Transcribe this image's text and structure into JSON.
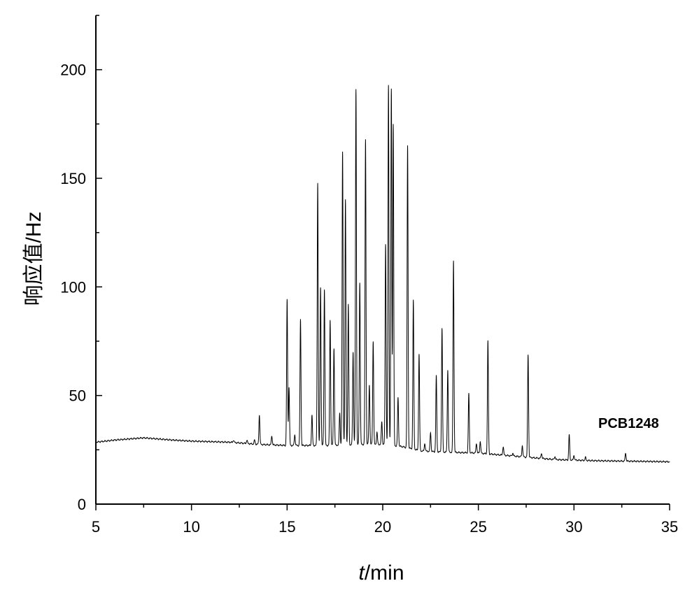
{
  "chart_data": {
    "type": "line",
    "title": "",
    "xlabel_italic": "t",
    "xlabel_rest": "/min",
    "ylabel": "响应值/Hz",
    "xlim": [
      5,
      35
    ],
    "ylim": [
      0,
      225
    ],
    "xticks": [
      5,
      10,
      15,
      20,
      25,
      30,
      35
    ],
    "yticks": [
      0,
      50,
      100,
      150,
      200
    ],
    "grid": false,
    "annotation": "PCB1248",
    "baseline": [
      [
        5,
        28.5
      ],
      [
        6,
        29.5
      ],
      [
        7.5,
        30.5
      ],
      [
        9,
        29.5
      ],
      [
        10,
        29.0
      ],
      [
        12,
        28.5
      ],
      [
        13.5,
        27.5
      ],
      [
        15,
        27.0
      ],
      [
        17,
        27.0
      ],
      [
        19,
        27.5
      ],
      [
        20,
        27.5
      ],
      [
        21,
        26.5
      ],
      [
        22,
        24.5
      ],
      [
        23,
        24.0
      ],
      [
        25,
        23.5
      ],
      [
        27,
        22.0
      ],
      [
        29,
        20.5
      ],
      [
        31,
        20.0
      ],
      [
        35,
        19.5
      ]
    ],
    "peaks": [
      {
        "x": 12.2,
        "y": 29.5
      },
      {
        "x": 12.9,
        "y": 29.5
      },
      {
        "x": 13.3,
        "y": 29.5
      },
      {
        "x": 13.55,
        "y": 41
      },
      {
        "x": 14.2,
        "y": 31.5
      },
      {
        "x": 15.0,
        "y": 94
      },
      {
        "x": 15.1,
        "y": 54
      },
      {
        "x": 15.4,
        "y": 32
      },
      {
        "x": 15.7,
        "y": 85
      },
      {
        "x": 16.3,
        "y": 41
      },
      {
        "x": 16.6,
        "y": 148
      },
      {
        "x": 16.75,
        "y": 100
      },
      {
        "x": 16.95,
        "y": 99
      },
      {
        "x": 17.25,
        "y": 85
      },
      {
        "x": 17.45,
        "y": 72
      },
      {
        "x": 17.75,
        "y": 42
      },
      {
        "x": 17.9,
        "y": 162
      },
      {
        "x": 18.05,
        "y": 140
      },
      {
        "x": 18.2,
        "y": 92
      },
      {
        "x": 18.45,
        "y": 70
      },
      {
        "x": 18.6,
        "y": 191
      },
      {
        "x": 18.8,
        "y": 102
      },
      {
        "x": 19.1,
        "y": 168
      },
      {
        "x": 19.3,
        "y": 55
      },
      {
        "x": 19.5,
        "y": 75
      },
      {
        "x": 19.7,
        "y": 33
      },
      {
        "x": 19.95,
        "y": 38
      },
      {
        "x": 20.15,
        "y": 120
      },
      {
        "x": 20.3,
        "y": 193
      },
      {
        "x": 20.45,
        "y": 191
      },
      {
        "x": 20.55,
        "y": 175
      },
      {
        "x": 20.8,
        "y": 49
      },
      {
        "x": 21.3,
        "y": 165
      },
      {
        "x": 21.6,
        "y": 94
      },
      {
        "x": 21.9,
        "y": 69
      },
      {
        "x": 22.2,
        "y": 28
      },
      {
        "x": 22.5,
        "y": 33
      },
      {
        "x": 22.8,
        "y": 59
      },
      {
        "x": 23.1,
        "y": 81
      },
      {
        "x": 23.4,
        "y": 62
      },
      {
        "x": 23.7,
        "y": 112
      },
      {
        "x": 24.5,
        "y": 51
      },
      {
        "x": 24.9,
        "y": 28
      },
      {
        "x": 25.1,
        "y": 29
      },
      {
        "x": 25.5,
        "y": 75
      },
      {
        "x": 26.3,
        "y": 26.5
      },
      {
        "x": 26.8,
        "y": 23.5
      },
      {
        "x": 27.3,
        "y": 27
      },
      {
        "x": 27.6,
        "y": 69
      },
      {
        "x": 28.3,
        "y": 23.5
      },
      {
        "x": 29.0,
        "y": 22
      },
      {
        "x": 29.75,
        "y": 32
      },
      {
        "x": 30.0,
        "y": 22.5
      },
      {
        "x": 30.6,
        "y": 21.5
      },
      {
        "x": 32.7,
        "y": 23.5
      }
    ]
  }
}
